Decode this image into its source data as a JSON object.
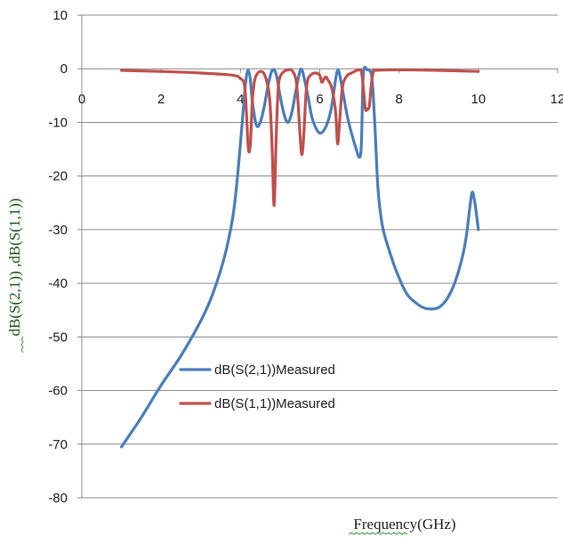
{
  "chart_data": {
    "type": "line",
    "title": "",
    "xlabel": "Frequency(GHz)",
    "ylabel": "dB(S(2,1))  ,dB(S(1,1))",
    "xlim": [
      0,
      12
    ],
    "ylim": [
      -80,
      10
    ],
    "xticks": [
      0,
      2,
      4,
      6,
      8,
      10,
      12
    ],
    "yticks": [
      10,
      0,
      -10,
      -20,
      -30,
      -40,
      -50,
      -60,
      -70,
      -80
    ],
    "grid": "horizontal",
    "legend_position": "bottom-center",
    "series": [
      {
        "name": "dB(S(2,1))Measured",
        "color": "#4a7ebb",
        "x": [
          1.0,
          1.5,
          2.0,
          2.5,
          3.0,
          3.3,
          3.6,
          3.8,
          3.9,
          4.0,
          4.1,
          4.15,
          4.2,
          4.25,
          4.3,
          4.4,
          4.5,
          4.6,
          4.7,
          4.8,
          4.9,
          5.0,
          5.1,
          5.2,
          5.3,
          5.4,
          5.5,
          5.55,
          5.6,
          5.7,
          5.8,
          5.9,
          6.0,
          6.1,
          6.2,
          6.3,
          6.4,
          6.45,
          6.5,
          6.6,
          6.7,
          6.8,
          6.9,
          7.0,
          7.05,
          7.1,
          7.2,
          7.3,
          7.35,
          7.4,
          7.45,
          7.5,
          7.6,
          7.8,
          8.0,
          8.2,
          8.4,
          8.6,
          8.8,
          9.0,
          9.2,
          9.4,
          9.6,
          9.7,
          9.8,
          9.85,
          9.9,
          9.95,
          10.0
        ],
        "y": [
          -70.5,
          -65.0,
          -59.0,
          -53.5,
          -47.0,
          -42.0,
          -35.0,
          -28.0,
          -22.0,
          -14.0,
          -5.0,
          -1.5,
          -0.3,
          -2.0,
          -6.0,
          -10.5,
          -10.0,
          -7.0,
          -3.0,
          -0.3,
          -1.0,
          -5.0,
          -8.5,
          -10.0,
          -8.0,
          -4.0,
          -0.5,
          -0.2,
          -1.5,
          -5.0,
          -9.0,
          -11.0,
          -12.0,
          -11.5,
          -10.0,
          -7.0,
          -2.0,
          -0.3,
          -1.0,
          -5.0,
          -9.0,
          -12.0,
          -14.5,
          -16.5,
          -14.0,
          -1.0,
          -0.2,
          -1.0,
          -5.0,
          -12.0,
          -20.0,
          -25.0,
          -30.0,
          -35.0,
          -39.0,
          -42.0,
          -43.5,
          -44.5,
          -44.8,
          -44.5,
          -43.0,
          -40.0,
          -35.0,
          -31.0,
          -25.0,
          -23.0,
          -24.5,
          -27.0,
          -30.0
        ]
      },
      {
        "name": "dB(S(1,1))Measured",
        "color": "#c0504d",
        "x": [
          1.0,
          2.0,
          3.0,
          3.8,
          4.0,
          4.1,
          4.15,
          4.2,
          4.25,
          4.3,
          4.35,
          4.4,
          4.5,
          4.6,
          4.7,
          4.75,
          4.8,
          4.85,
          4.9,
          4.95,
          5.0,
          5.1,
          5.2,
          5.3,
          5.4,
          5.45,
          5.5,
          5.55,
          5.6,
          5.65,
          5.7,
          5.8,
          5.9,
          6.0,
          6.05,
          6.1,
          6.15,
          6.2,
          6.3,
          6.4,
          6.45,
          6.5,
          6.55,
          6.6,
          6.7,
          6.8,
          6.9,
          7.0,
          7.05,
          7.1,
          7.15,
          7.2,
          7.25,
          7.3,
          7.35,
          7.4,
          8.0,
          9.0,
          10.0
        ],
        "y": [
          -0.3,
          -0.5,
          -0.8,
          -1.2,
          -1.8,
          -3.0,
          -8.0,
          -15.0,
          -14.0,
          -6.0,
          -2.5,
          -1.2,
          -0.5,
          -1.0,
          -3.5,
          -7.0,
          -15.0,
          -25.5,
          -13.0,
          -4.0,
          -1.5,
          -0.5,
          -0.2,
          -0.3,
          -2.0,
          -6.0,
          -12.0,
          -16.0,
          -12.0,
          -5.0,
          -2.0,
          -1.0,
          -0.8,
          -1.2,
          -2.5,
          -2.0,
          -1.5,
          -2.0,
          -3.5,
          -8.0,
          -14.0,
          -10.0,
          -5.0,
          -2.5,
          -1.2,
          -0.8,
          -0.4,
          -0.2,
          -0.5,
          -3.5,
          -7.5,
          -7.5,
          -7.0,
          -3.0,
          -0.6,
          -0.3,
          -0.2,
          -0.3,
          -0.5
        ]
      }
    ]
  }
}
